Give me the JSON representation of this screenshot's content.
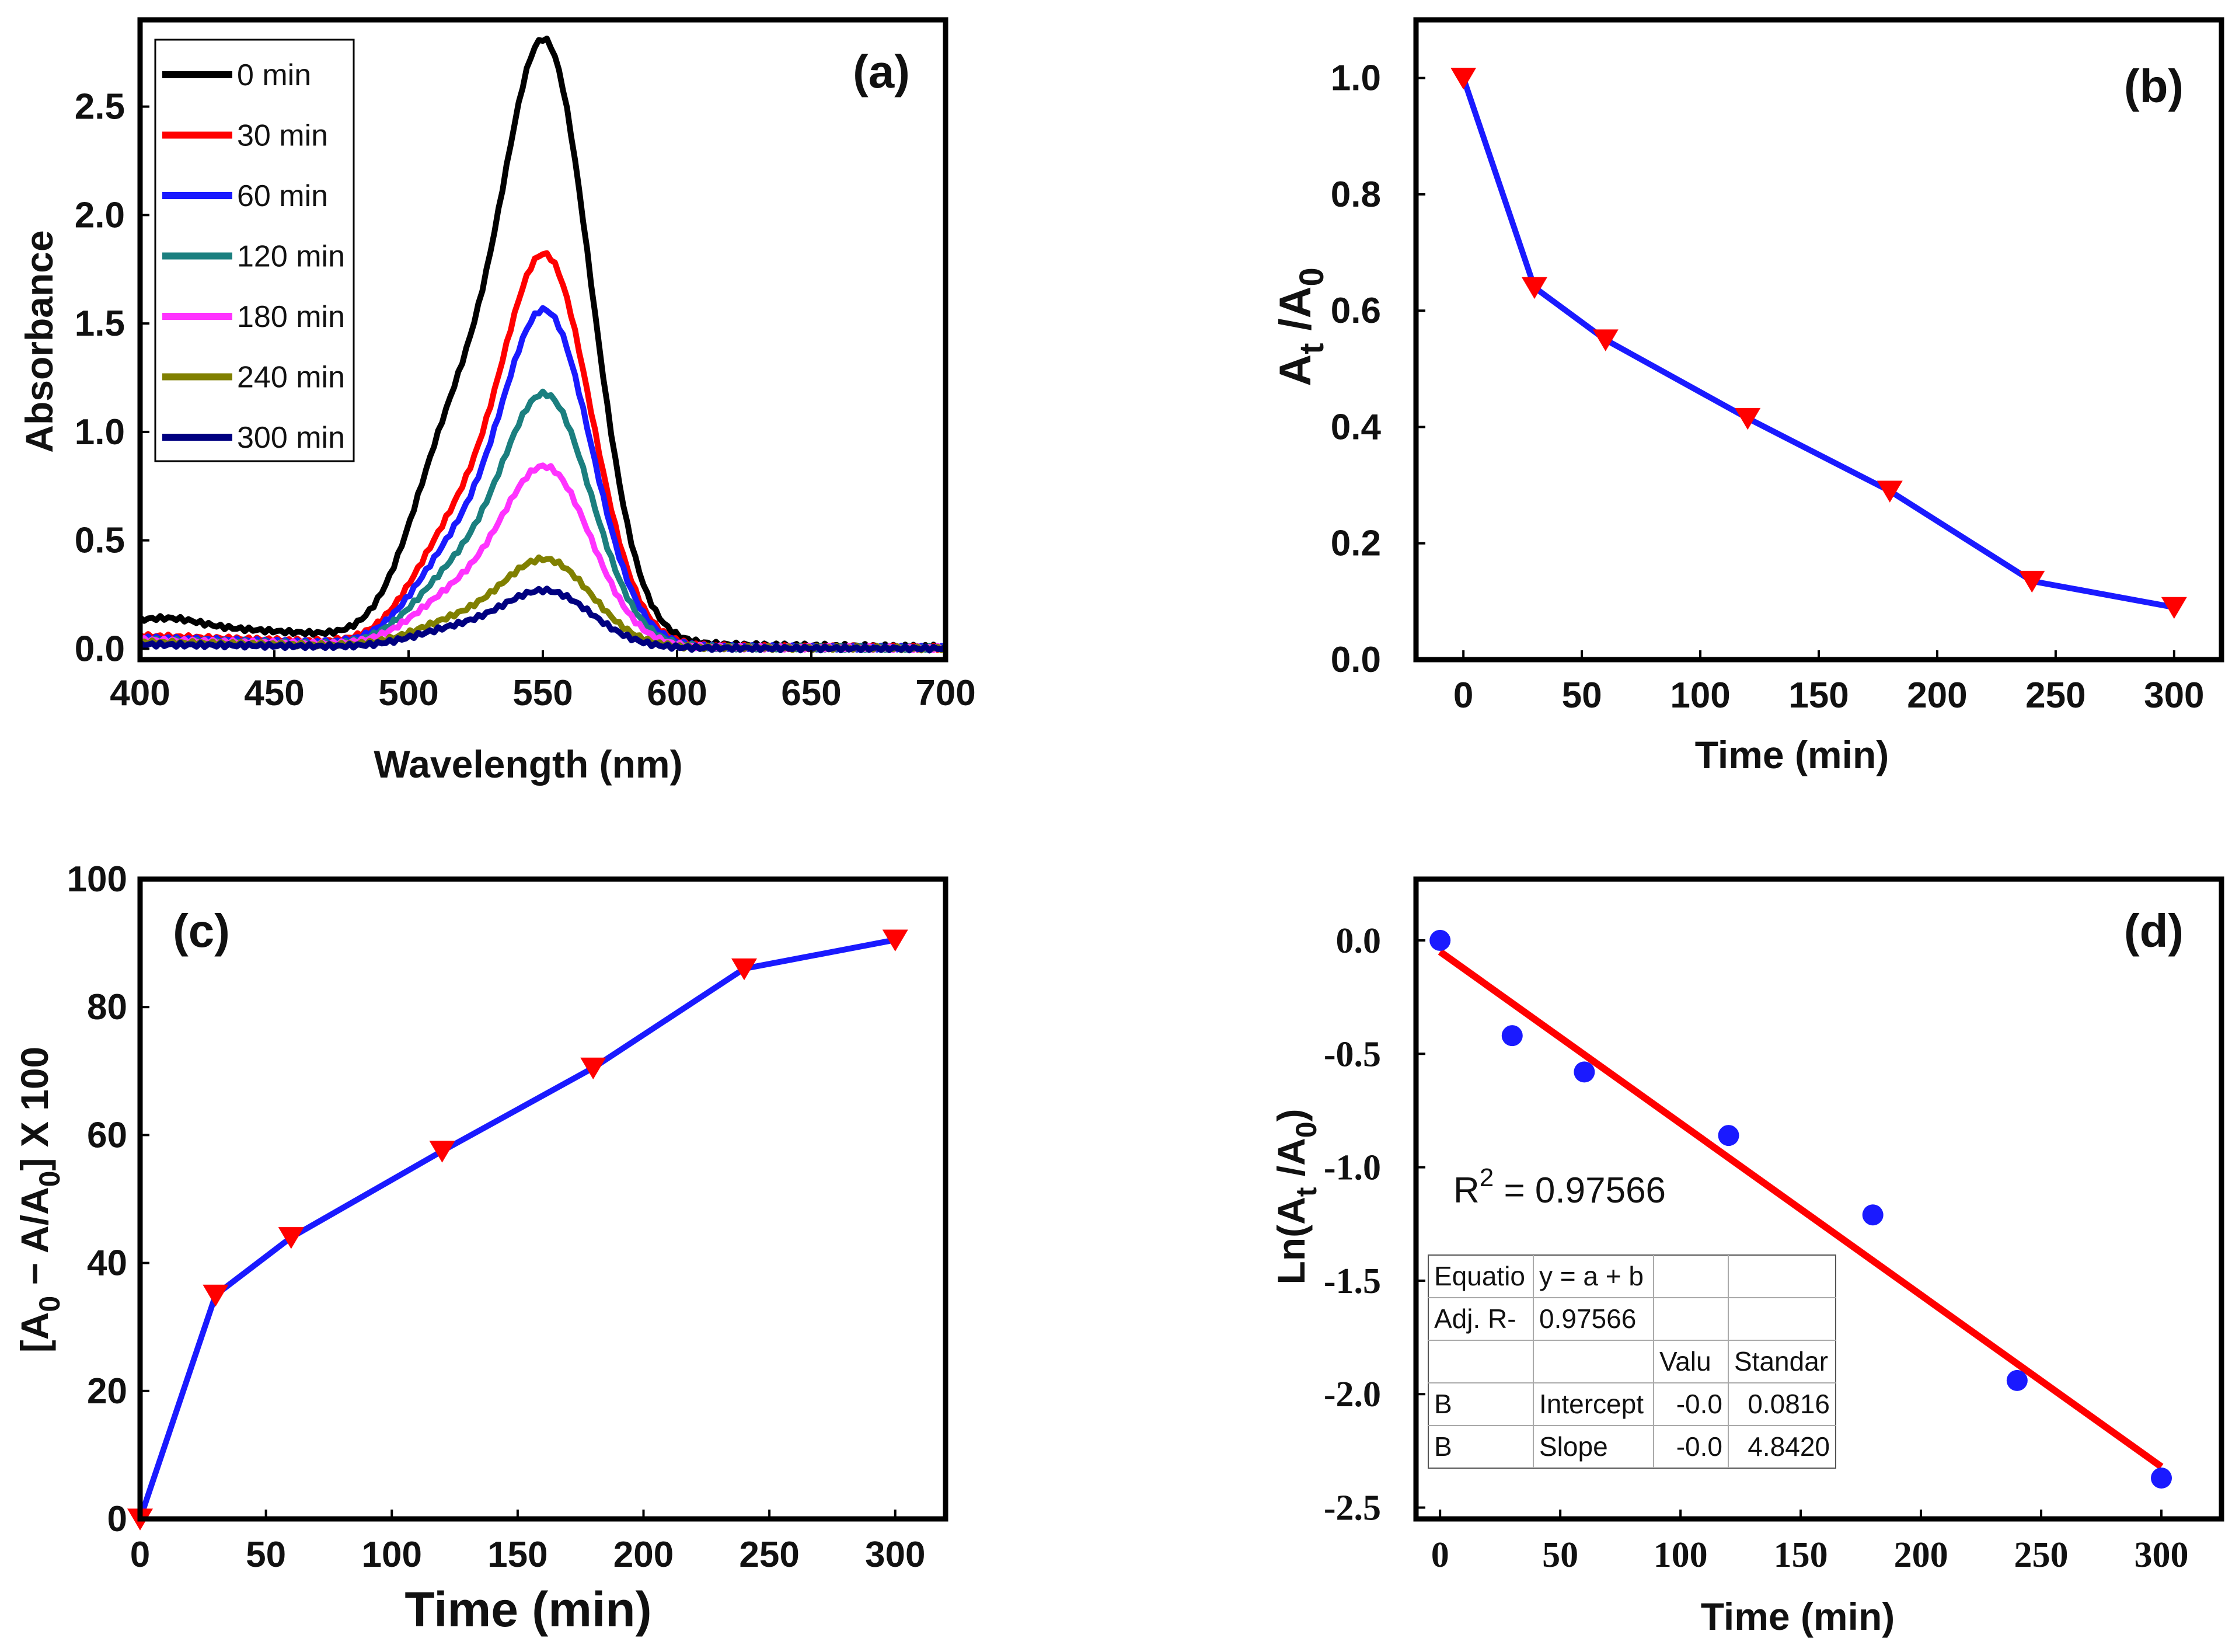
{
  "chart_data": [
    {
      "panel": "(a)",
      "type": "line",
      "xlabel": "Wavelength (nm)",
      "ylabel": "Absorbance",
      "xlim": [
        400,
        700
      ],
      "ylim": [
        -0.05,
        2.9
      ],
      "xticks": [
        "400",
        "450",
        "500",
        "550",
        "600",
        "650",
        "700"
      ],
      "yticks": [
        "0.0",
        "0.5",
        "1.0",
        "1.5",
        "2.0",
        "2.5"
      ],
      "legend_position": "top-left",
      "series": [
        {
          "name": "0 min",
          "color": "#000000",
          "peak": 2.73,
          "shoulder": 1.3,
          "baseline": 0.12
        },
        {
          "name": "30 min",
          "color": "#ff0000",
          "peak": 1.78,
          "shoulder": 0.67,
          "baseline": 0.06
        },
        {
          "name": "60 min",
          "color": "#1a1aff",
          "peak": 1.53,
          "shoulder": 0.55,
          "baseline": 0.05
        },
        {
          "name": "120 min",
          "color": "#1b7f7f",
          "peak": 1.15,
          "shoulder": 0.42,
          "baseline": 0.04
        },
        {
          "name": "180 min",
          "color": "#ff33ff",
          "peak": 0.82,
          "shoulder": 0.3,
          "baseline": 0.04
        },
        {
          "name": "240 min",
          "color": "#808000",
          "peak": 0.4,
          "shoulder": 0.15,
          "baseline": 0.03
        },
        {
          "name": "300 min",
          "color": "#000080",
          "peak": 0.26,
          "shoulder": 0.11,
          "baseline": 0.02
        }
      ]
    },
    {
      "panel": "(b)",
      "type": "line",
      "xlabel": "Time (min)",
      "ylabel_main": "A",
      "ylabel_sub1": "t",
      "ylabel_mid": " /A",
      "ylabel_sub2": "0",
      "xlim": [
        -20,
        320
      ],
      "ylim": [
        0,
        1.1
      ],
      "xticks": [
        "0",
        "50",
        "100",
        "150",
        "200",
        "250",
        "300"
      ],
      "yticks": [
        "0.0",
        "0.2",
        "0.4",
        "0.6",
        "0.8",
        "1.0"
      ],
      "x": [
        0,
        30,
        60,
        120,
        180,
        240,
        300
      ],
      "y": [
        1.0,
        0.64,
        0.55,
        0.415,
        0.29,
        0.135,
        0.09
      ],
      "line_color": "#1a1aff",
      "marker_color": "#ff0000"
    },
    {
      "panel": "(c)",
      "type": "line",
      "xlabel": "Time (min)",
      "ylabel_parts": [
        "[A",
        "0",
        " − A/A",
        "0",
        "] X 100"
      ],
      "xlim": [
        0,
        320
      ],
      "ylim": [
        0,
        100
      ],
      "xticks": [
        "0",
        "50",
        "100",
        "150",
        "200",
        "250",
        "300"
      ],
      "yticks": [
        "0",
        "20",
        "40",
        "60",
        "80",
        "100"
      ],
      "x": [
        0,
        30,
        60,
        120,
        180,
        240,
        300
      ],
      "y": [
        0,
        35,
        44,
        57.5,
        70.5,
        86,
        90.5
      ],
      "line_color": "#1a1aff",
      "marker_color": "#ff0000"
    },
    {
      "panel": "(d)",
      "type": "scatter",
      "xlabel": "Time (min)",
      "ylabel_parts": [
        "Ln(A",
        "t",
        " /A",
        "0",
        ")"
      ],
      "xlim": [
        -10,
        325
      ],
      "ylim": [
        -2.55,
        0.27
      ],
      "xticks": [
        "0",
        "50",
        "100",
        "150",
        "200",
        "250",
        "300"
      ],
      "yticks": [
        "0.0",
        "-0.5",
        "-1.0",
        "-1.5",
        "-2.0",
        "-2.5"
      ],
      "x": [
        0,
        30,
        60,
        120,
        180,
        240,
        300
      ],
      "y": [
        0.0,
        -0.42,
        -0.58,
        -0.86,
        -1.21,
        -1.94,
        -2.37
      ],
      "fit": {
        "x": [
          0,
          300
        ],
        "y": [
          -0.05,
          -2.32
        ]
      },
      "point_color": "#1a1aff",
      "fit_color": "#ff0000",
      "r2_label": "R",
      "r2_sup": "2",
      "r2_value": " = 0.97566",
      "table": [
        [
          "Equatio",
          "y = a + b",
          "",
          ""
        ],
        [
          "Adj. R-",
          "0.97566",
          "",
          ""
        ],
        [
          "",
          "",
          "Valu",
          "Standar"
        ],
        [
          "B",
          "Intercept",
          "-0.0",
          "0.0816"
        ],
        [
          "B",
          "Slope",
          "-0.0",
          "4.8420"
        ]
      ]
    }
  ]
}
